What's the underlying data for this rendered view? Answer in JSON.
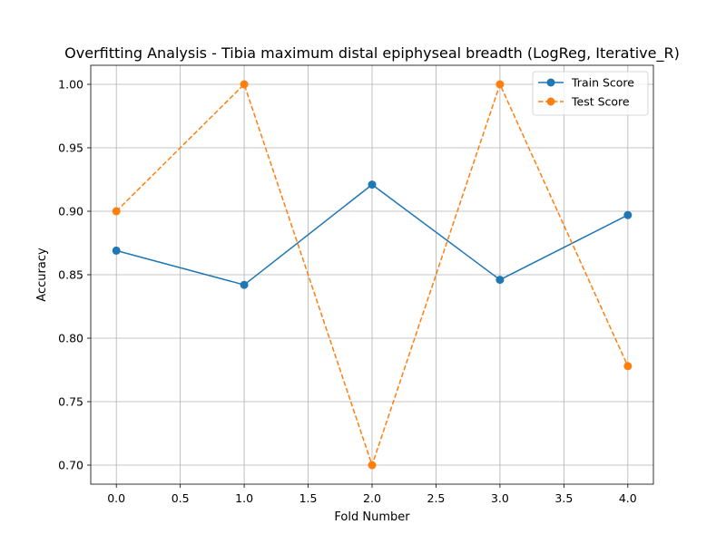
{
  "chart_data": {
    "type": "line",
    "title": "Overfitting Analysis - Tibia maximum distal epiphyseal breadth (LogReg, Iterative_R)",
    "xlabel": "Fold Number",
    "ylabel": "Accuracy",
    "xlim": [
      -0.2,
      4.2
    ],
    "ylim": [
      0.685,
      1.015
    ],
    "xticks": [
      0.0,
      0.5,
      1.0,
      1.5,
      2.0,
      2.5,
      3.0,
      3.5,
      4.0
    ],
    "xtick_labels": [
      "0.0",
      "0.5",
      "1.0",
      "1.5",
      "2.0",
      "2.5",
      "3.0",
      "3.5",
      "4.0"
    ],
    "yticks": [
      0.7,
      0.75,
      0.8,
      0.85,
      0.9,
      0.95,
      1.0
    ],
    "ytick_labels": [
      "0.70",
      "0.75",
      "0.80",
      "0.85",
      "0.90",
      "0.95",
      "1.00"
    ],
    "grid": true,
    "legend_position": "top-right",
    "x": [
      0,
      1,
      2,
      3,
      4
    ],
    "series": [
      {
        "name": "Train Score",
        "values": [
          0.869,
          0.842,
          0.921,
          0.846,
          0.897
        ],
        "color": "#1f77b4",
        "line_style": "solid",
        "marker": "circle"
      },
      {
        "name": "Test Score",
        "values": [
          0.9,
          1.0,
          0.7,
          1.0,
          0.778
        ],
        "color": "#ff7f0e",
        "line_style": "dashed",
        "marker": "circle"
      }
    ]
  }
}
